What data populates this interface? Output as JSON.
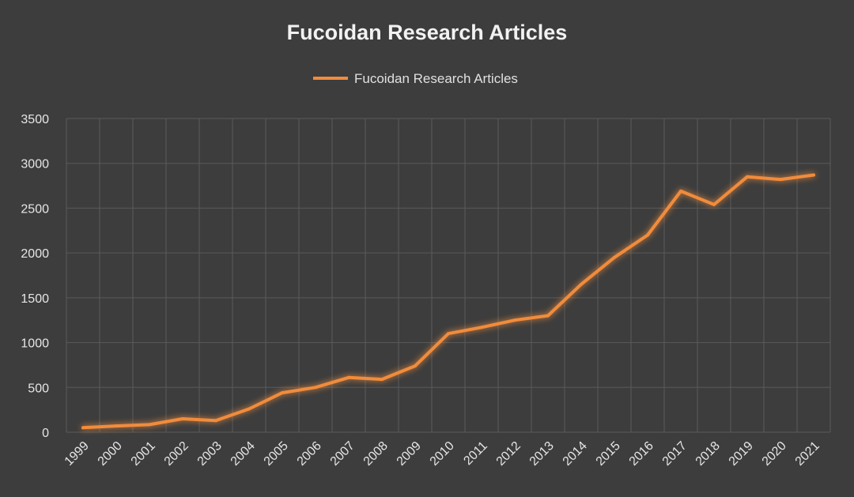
{
  "chart_data": {
    "type": "line",
    "title": "Fucoidan Research Articles",
    "xlabel": "",
    "ylabel": "",
    "x": [
      "1999",
      "2000",
      "2001",
      "2002",
      "2003",
      "2004",
      "2005",
      "2006",
      "2007",
      "2008",
      "2009",
      "2010",
      "2011",
      "2012",
      "2013",
      "2014",
      "2015",
      "2016",
      "2017",
      "2018",
      "2019",
      "2020",
      "2021"
    ],
    "series": [
      {
        "name": "Fucoidan Research Articles",
        "values": [
          50,
          70,
          85,
          150,
          130,
          260,
          440,
          500,
          610,
          590,
          740,
          1100,
          1170,
          1250,
          1300,
          1650,
          1950,
          2200,
          2690,
          2540,
          2850,
          2820,
          2870
        ]
      }
    ],
    "ylim": [
      0,
      3500
    ],
    "yticks": [
      0,
      500,
      1000,
      1500,
      2000,
      2500,
      3000,
      3500
    ],
    "grid": true,
    "legend": "top-center",
    "colors": {
      "background": "#3d3d3d",
      "line": "#f08c3c",
      "grid": "#5a5a5a",
      "text": "#e6e6e6"
    }
  }
}
